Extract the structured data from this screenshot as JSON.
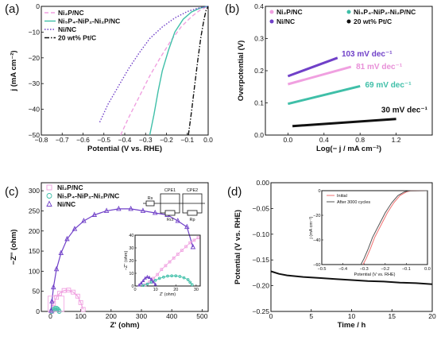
{
  "chart_data": [
    {
      "panel": "(a)",
      "type": "line",
      "xlabel": "Potential (V vs. RHE)",
      "ylabel": "j (mA cm⁻²)",
      "xlim": [
        -0.8,
        0.0
      ],
      "ylim": [
        -50,
        0
      ],
      "xticks": [
        "−0.8",
        "−0.7",
        "−0.6",
        "−0.5",
        "−0.4",
        "−0.3",
        "−0.2",
        "−0.1",
        "0.0"
      ],
      "yticks": [
        "0",
        "−10",
        "−20",
        "−30",
        "−40",
        "−50"
      ],
      "legend_position": "top-left",
      "series": [
        {
          "name": "Ni₂P/NC",
          "color": "#f0a0e0",
          "style": "dashed",
          "x": [
            -0.42,
            -0.38,
            -0.33,
            -0.28,
            -0.23,
            -0.18,
            -0.13,
            -0.08,
            -0.04,
            -0.01,
            0.0
          ],
          "y": [
            -50,
            -43,
            -35,
            -27,
            -20,
            -13.5,
            -8,
            -4,
            -1.5,
            -0.3,
            0
          ]
        },
        {
          "name": "Ni₅P₄-NiP₂-Ni₂P/NC",
          "color": "#3fbfa8",
          "style": "solid",
          "x": [
            -0.28,
            -0.26,
            -0.24,
            -0.22,
            -0.19,
            -0.16,
            -0.12,
            -0.08,
            -0.04,
            -0.01,
            0.0
          ],
          "y": [
            -50,
            -42,
            -33,
            -25,
            -17,
            -10,
            -5,
            -2.2,
            -0.7,
            -0.1,
            0
          ]
        },
        {
          "name": "Ni/NC",
          "color": "#7040c8",
          "style": "dotted",
          "x": [
            -0.52,
            -0.48,
            -0.43,
            -0.38,
            -0.33,
            -0.28,
            -0.22,
            -0.16,
            -0.1,
            -0.05,
            -0.01,
            0.0
          ],
          "y": [
            -45,
            -38,
            -31,
            -24,
            -18,
            -12.5,
            -8,
            -4.5,
            -2,
            -0.7,
            -0.1,
            0
          ]
        },
        {
          "name": "20 wt% Pt/C",
          "color": "#111111",
          "style": "dashdot",
          "x": [
            -0.095,
            -0.08,
            -0.065,
            -0.05,
            -0.035,
            -0.02,
            -0.01,
            0.0
          ],
          "y": [
            -50,
            -41,
            -31,
            -21,
            -12,
            -5,
            -1.5,
            0
          ]
        }
      ]
    },
    {
      "panel": "(b)",
      "type": "line",
      "xlabel": "Log(− j / mA cm⁻²)",
      "ylabel": "Overpotential (V)",
      "xlim": [
        -0.25,
        1.6
      ],
      "ylim": [
        0.0,
        0.4
      ],
      "xticks": [
        "0.0",
        "0.4",
        "0.8",
        "1.2"
      ],
      "yticks": [
        "0.0",
        "0.1",
        "0.2",
        "0.3",
        "0.4"
      ],
      "legend_position": "top",
      "series": [
        {
          "name": "Ni₂P/NC",
          "color": "#f0a0e0",
          "x": [
            0.0,
            0.7
          ],
          "y": [
            0.158,
            0.212
          ],
          "tafel": "81 mV dec⁻¹"
        },
        {
          "name": "Ni₅P₄-NiP₂-Ni₂P/NC",
          "color": "#3fbfa8",
          "x": [
            0.0,
            0.8
          ],
          "y": [
            0.097,
            0.152
          ],
          "tafel": "69 mV dec⁻¹"
        },
        {
          "name": "Ni/NC",
          "color": "#7040c8",
          "x": [
            0.0,
            0.55
          ],
          "y": [
            0.183,
            0.24
          ],
          "tafel": "103 mV dec⁻¹"
        },
        {
          "name": "20 wt% Pt/C",
          "color": "#111111",
          "x": [
            0.05,
            1.2
          ],
          "y": [
            0.028,
            0.05
          ],
          "tafel": "30 mV dec⁻¹"
        }
      ]
    },
    {
      "panel": "(c)",
      "type": "scatter",
      "xlabel": "Z' (ohm)",
      "ylabel": "−Z'' (ohm)",
      "xlim": [
        -30,
        520
      ],
      "ylim": [
        0,
        320
      ],
      "xticks": [
        "0",
        "100",
        "200",
        "300",
        "400",
        "500"
      ],
      "yticks": [
        "0",
        "50",
        "100",
        "150",
        "200",
        "250",
        "300"
      ],
      "legend_position": "top-left",
      "circuit_labels": {
        "cpe1": "CPE1",
        "cpe2": "CPE2",
        "rs": "Rs",
        "rct": "Rct",
        "rp": "Rp"
      },
      "series": [
        {
          "name": "Ni₂P/NC",
          "color": "#f0a0e0",
          "marker": "square",
          "x": [
            5,
            10,
            20,
            30,
            45,
            60,
            75,
            90,
            100,
            108
          ],
          "y": [
            0,
            20,
            35,
            45,
            52,
            53,
            48,
            38,
            22,
            5
          ]
        },
        {
          "name": "Ni₅P₄-NiP₂-Ni₂P/NC",
          "color": "#3fbfa8",
          "marker": "circle",
          "x": [
            4,
            8,
            12,
            16,
            20,
            24,
            27,
            29
          ],
          "y": [
            0,
            3,
            6,
            8,
            8,
            6,
            3,
            0
          ]
        },
        {
          "name": "Ni/NC",
          "color": "#7040c8",
          "marker": "triangle",
          "x": [
            2,
            5,
            10,
            20,
            35,
            55,
            80,
            110,
            145,
            185,
            225,
            265,
            305,
            345,
            385,
            420,
            450,
            470
          ],
          "y": [
            2,
            25,
            60,
            105,
            145,
            180,
            205,
            225,
            240,
            250,
            255,
            255,
            250,
            245,
            240,
            225,
            210,
            160
          ]
        }
      ],
      "inset": {
        "xlim": [
          0,
          32
        ],
        "ylim": [
          0,
          40
        ],
        "xticks": [
          "0",
          "10",
          "20",
          "30"
        ],
        "yticks": [
          "0",
          "10",
          "20",
          "30",
          "40"
        ],
        "xlabel": "Z' (ohm)",
        "ylabel": "−Z'' (ohm)"
      }
    },
    {
      "panel": "(d)",
      "type": "line",
      "xlabel": "Time / h",
      "ylabel": "Potential (V vs. RHE)",
      "xlim": [
        0,
        20
      ],
      "ylim": [
        -0.25,
        0.0
      ],
      "xticks": [
        "0",
        "5",
        "10",
        "15",
        "20"
      ],
      "yticks": [
        "0.00",
        "−0.05",
        "−0.10",
        "−0.15",
        "−0.20",
        "−0.25"
      ],
      "series": [
        {
          "name": "",
          "color": "#111111",
          "x": [
            0,
            1,
            2,
            4,
            6,
            8,
            10,
            12,
            14,
            16,
            18,
            20
          ],
          "y": [
            -0.172,
            -0.177,
            -0.18,
            -0.183,
            -0.185,
            -0.187,
            -0.189,
            -0.191,
            -0.192,
            -0.194,
            -0.195,
            -0.197
          ]
        }
      ],
      "inset": {
        "xlabel": "Potential (V vs. RHE)",
        "ylabel": "j (mA cm⁻²)",
        "xlim": [
          -0.5,
          0.0
        ],
        "ylim": [
          -60,
          0
        ],
        "xticks": [
          "−0.5",
          "−0.4",
          "−0.3",
          "−0.2",
          "−0.1",
          "0.0"
        ],
        "yticks": [
          "0",
          "−20",
          "−40",
          "−60"
        ],
        "series": [
          {
            "name": "Initial",
            "color": "#f07070",
            "x": [
              -0.305,
              -0.29,
              -0.27,
              -0.25,
              -0.22,
              -0.19,
              -0.16,
              -0.13,
              -0.1,
              -0.08,
              0.0
            ],
            "y": [
              -60,
              -55,
              -47,
              -38,
              -28,
              -18,
              -10,
              -4,
              -1,
              -0.2,
              0
            ]
          },
          {
            "name": "After 3000 cycles",
            "color": "#555555",
            "x": [
              -0.315,
              -0.3,
              -0.28,
              -0.26,
              -0.23,
              -0.2,
              -0.17,
              -0.14,
              -0.11,
              -0.09,
              0.0
            ],
            "y": [
              -60,
              -55,
              -47,
              -38,
              -28,
              -18,
              -10,
              -4,
              -1,
              -0.2,
              0
            ]
          }
        ]
      }
    }
  ]
}
